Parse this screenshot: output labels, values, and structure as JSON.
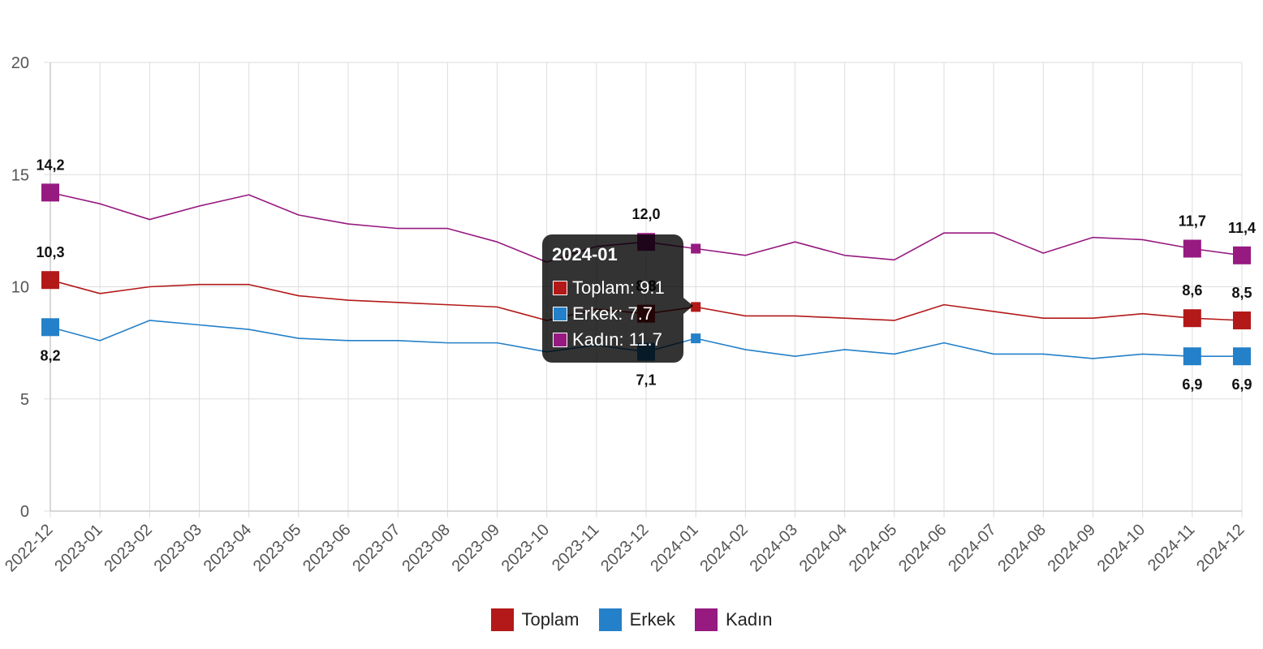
{
  "chart_data": {
    "type": "line",
    "title": "",
    "xlabel": "",
    "ylabel": "",
    "ylim": [
      0,
      20
    ],
    "yticks": [
      "0",
      "5",
      "10",
      "15",
      "20"
    ],
    "grid": true,
    "legend_position": "bottom-center",
    "categories": [
      "2022-12",
      "2023-01",
      "2023-02",
      "2023-03",
      "2023-04",
      "2023-05",
      "2023-06",
      "2023-07",
      "2023-08",
      "2023-09",
      "2023-10",
      "2023-11",
      "2023-12",
      "2024-01",
      "2024-02",
      "2024-03",
      "2024-04",
      "2024-05",
      "2024-06",
      "2024-07",
      "2024-08",
      "2024-09",
      "2024-10",
      "2024-11",
      "2024-12"
    ],
    "series": [
      {
        "name": "Toplam",
        "color": "#b31919",
        "values": [
          10.3,
          9.7,
          10.0,
          10.1,
          10.1,
          9.6,
          9.4,
          9.3,
          9.2,
          9.1,
          8.5,
          9.0,
          8.8,
          9.1,
          8.7,
          8.7,
          8.6,
          8.5,
          9.2,
          8.9,
          8.6,
          8.6,
          8.8,
          8.6,
          8.5
        ],
        "data_labels": [
          {
            "index": 0,
            "text": "10,3",
            "position": "above"
          },
          {
            "index": 12,
            "text": "8,8",
            "position": "above"
          },
          {
            "index": 23,
            "text": "8,6",
            "position": "above"
          },
          {
            "index": 24,
            "text": "8,5",
            "position": "above"
          }
        ]
      },
      {
        "name": "Erkek",
        "color": "#2480c8",
        "values": [
          8.2,
          7.6,
          8.5,
          8.3,
          8.1,
          7.7,
          7.6,
          7.6,
          7.5,
          7.5,
          7.1,
          7.4,
          7.1,
          7.7,
          7.2,
          6.9,
          7.2,
          7.0,
          7.5,
          7.0,
          7.0,
          6.8,
          7.0,
          6.9,
          6.9
        ],
        "data_labels": [
          {
            "index": 0,
            "text": "8,2",
            "position": "below"
          },
          {
            "index": 12,
            "text": "7,1",
            "position": "below"
          },
          {
            "index": 23,
            "text": "6,9",
            "position": "below"
          },
          {
            "index": 24,
            "text": "6,9",
            "position": "below"
          }
        ]
      },
      {
        "name": "Kadın",
        "color": "#961a80",
        "values": [
          14.2,
          13.7,
          13.0,
          13.6,
          14.1,
          13.2,
          12.8,
          12.6,
          12.6,
          12.0,
          11.1,
          11.8,
          12.0,
          11.7,
          11.4,
          12.0,
          11.4,
          11.2,
          12.4,
          12.4,
          11.5,
          12.2,
          12.1,
          11.7,
          11.4
        ],
        "data_labels": [
          {
            "index": 0,
            "text": "14,2",
            "position": "above"
          },
          {
            "index": 12,
            "text": "12,0",
            "position": "above"
          },
          {
            "index": 23,
            "text": "11,7",
            "position": "above"
          },
          {
            "index": 24,
            "text": "11,4",
            "position": "above"
          }
        ]
      }
    ],
    "large_markers": [
      0,
      12,
      23,
      24
    ],
    "hover_index": 13,
    "tooltip": {
      "title": "2024-01",
      "rows": [
        {
          "label": "Toplam: 9.1",
          "color": "#b31919"
        },
        {
          "label": "Erkek: 7.7",
          "color": "#2480c8"
        },
        {
          "label": "Kadın: 11.7",
          "color": "#961a80"
        }
      ]
    }
  }
}
